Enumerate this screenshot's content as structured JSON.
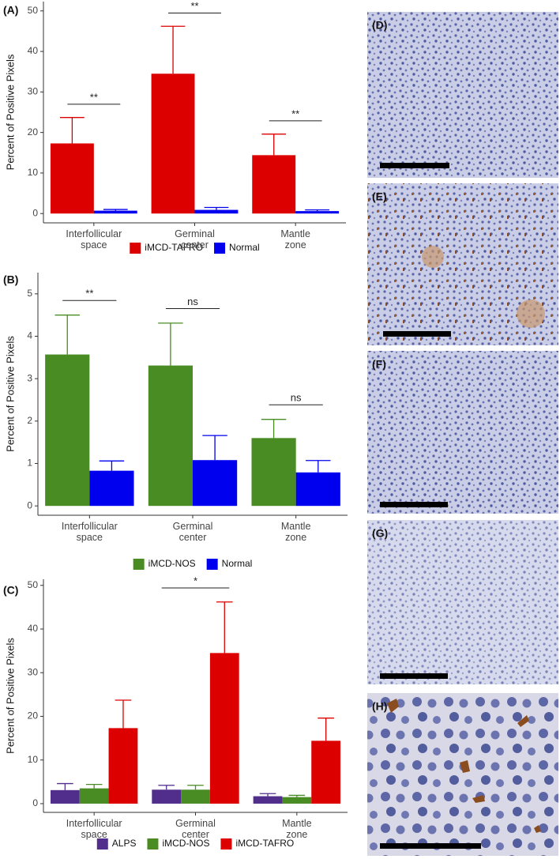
{
  "chart_data": [
    {
      "type": "bar",
      "label": "(A)",
      "y_label": "Percent of Positive Pixels",
      "categories": [
        "Interfollicular space",
        "Germinal center",
        "Mantle zone"
      ],
      "series": [
        {
          "name": "iMCD-TAFRO",
          "color": "#dd0000",
          "values": [
            17.3,
            34.5,
            14.4
          ],
          "errors": [
            6.4,
            11.7,
            5.2
          ]
        },
        {
          "name": "Normal",
          "color": "#0000ee",
          "values": [
            0.7,
            0.9,
            0.6
          ],
          "errors": [
            0.3,
            0.6,
            0.3
          ]
        }
      ],
      "ylim": [
        -2.3,
        52.3
      ],
      "yticks": [
        0,
        10,
        20,
        30,
        40,
        50
      ],
      "annotations": [
        {
          "text": "**",
          "category": 0,
          "series": [
            0,
            1
          ]
        },
        {
          "text": "**",
          "category": 1,
          "series": [
            0,
            1
          ]
        },
        {
          "text": "**",
          "category": 2,
          "series": [
            0,
            1
          ]
        }
      ]
    },
    {
      "type": "bar",
      "label": "(B)",
      "y_label": "Percent of Positive Pixels",
      "categories": [
        "Interfollicular space",
        "Germinal center",
        "Mantle zone"
      ],
      "series": [
        {
          "name": "iMCD-NOS",
          "color": "#4a8c24",
          "values": [
            3.57,
            3.31,
            1.6
          ],
          "errors": [
            0.93,
            1.0,
            0.44
          ]
        },
        {
          "name": "Normal",
          "color": "#0000ee",
          "values": [
            0.83,
            1.08,
            0.79
          ],
          "errors": [
            0.23,
            0.58,
            0.28
          ]
        }
      ],
      "ylim": [
        -0.22,
        5.5
      ],
      "yticks": [
        0,
        1,
        2,
        3,
        4,
        5
      ],
      "annotations": [
        {
          "text": "**",
          "category": 0,
          "series": [
            0,
            1
          ]
        },
        {
          "text": "ns",
          "category": 1,
          "series": [
            0,
            1
          ]
        },
        {
          "text": "ns",
          "category": 2,
          "series": [
            0,
            1
          ]
        }
      ]
    },
    {
      "type": "bar",
      "label": "(C)",
      "y_label": "Percent of Positive Pixels",
      "categories": [
        "Interfollicular space",
        "Germinal center",
        "Mantle zone"
      ],
      "series": [
        {
          "name": "ALPS",
          "color": "#512d8c",
          "values": [
            3.1,
            3.2,
            1.7
          ],
          "errors": [
            1.5,
            1.0,
            0.6
          ]
        },
        {
          "name": "iMCD-NOS",
          "color": "#4a8c24",
          "values": [
            3.5,
            3.2,
            1.5
          ],
          "errors": [
            0.9,
            1.0,
            0.4
          ]
        },
        {
          "name": "iMCD-TAFRO",
          "color": "#dd0000",
          "values": [
            17.3,
            34.5,
            14.4
          ],
          "errors": [
            6.4,
            11.7,
            5.2
          ]
        }
      ],
      "ylim": [
        -2,
        51.4
      ],
      "yticks": [
        0,
        10,
        20,
        30,
        40,
        50
      ],
      "annotations": [
        {
          "text": "*",
          "category": 1,
          "series": [
            0,
            2
          ]
        }
      ]
    }
  ],
  "images": [
    {
      "label": "(D)"
    },
    {
      "label": "(E)"
    },
    {
      "label": "(F)"
    },
    {
      "label": "(G)"
    },
    {
      "label": "(H)"
    }
  ]
}
